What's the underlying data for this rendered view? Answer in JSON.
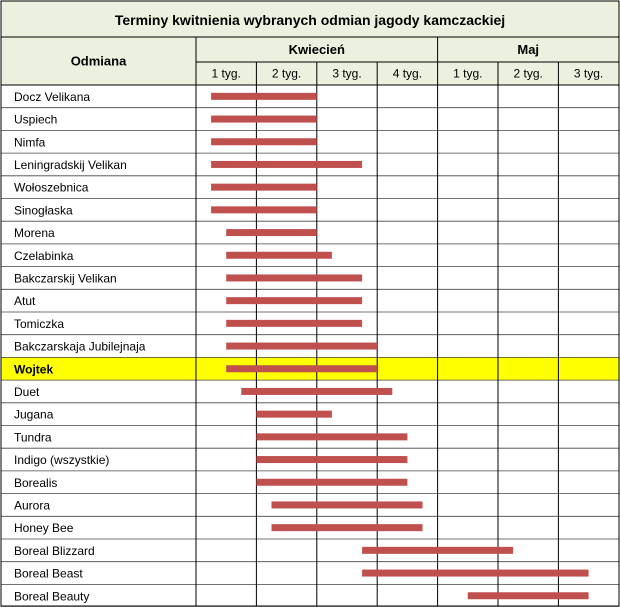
{
  "chart_data": {
    "type": "gantt",
    "title": "Terminy kwitnienia wybranych odmian jagody kamczackiej",
    "row_header": "Odmiana",
    "months": [
      {
        "name": "Kwiecień",
        "weeks": [
          "1 tyg.",
          "2 tyg.",
          "3 tyg.",
          "4 tyg."
        ]
      },
      {
        "name": "Maj",
        "weeks": [
          "1 tyg.",
          "2 tyg.",
          "3 tyg."
        ]
      }
    ],
    "unit": "week index (0 = start of Kwiecień 1 tyg.)",
    "axis_range": [
      0,
      7
    ],
    "bar_color": "#c0504d",
    "highlight_color": "#ffff00",
    "header_color": "#ebf1de",
    "rows": [
      {
        "name": "Docz Velikana",
        "start": 0.25,
        "end": 2.0
      },
      {
        "name": "Uspiech",
        "start": 0.25,
        "end": 2.0
      },
      {
        "name": "Nimfa",
        "start": 0.25,
        "end": 2.0
      },
      {
        "name": "Leningradskij Velikan",
        "start": 0.25,
        "end": 2.75
      },
      {
        "name": "Wołoszebnica",
        "start": 0.25,
        "end": 2.0
      },
      {
        "name": "Sinogłaska",
        "start": 0.25,
        "end": 2.0
      },
      {
        "name": "Morena",
        "start": 0.5,
        "end": 2.0
      },
      {
        "name": "Czelabinka",
        "start": 0.5,
        "end": 2.25
      },
      {
        "name": "Bakczarskij Velikan",
        "start": 0.5,
        "end": 2.75
      },
      {
        "name": "Atut",
        "start": 0.5,
        "end": 2.75
      },
      {
        "name": "Tomiczka",
        "start": 0.5,
        "end": 2.75
      },
      {
        "name": "Bakczarskaja Jubilejnaja",
        "start": 0.5,
        "end": 3.0
      },
      {
        "name": "Wojtek",
        "start": 0.5,
        "end": 3.0,
        "highlight": true
      },
      {
        "name": "Duet",
        "start": 0.75,
        "end": 3.25
      },
      {
        "name": "Jugana",
        "start": 1.0,
        "end": 2.25
      },
      {
        "name": "Tundra",
        "start": 1.0,
        "end": 3.5
      },
      {
        "name": "Indigo (wszystkie)",
        "start": 1.0,
        "end": 3.5
      },
      {
        "name": "Borealis",
        "start": 1.0,
        "end": 3.5
      },
      {
        "name": "Aurora",
        "start": 1.25,
        "end": 3.75
      },
      {
        "name": "Honey Bee",
        "start": 1.25,
        "end": 3.75
      },
      {
        "name": "Boreal Blizzard",
        "start": 2.75,
        "end": 5.25
      },
      {
        "name": "Boreal Beast",
        "start": 2.75,
        "end": 6.5
      },
      {
        "name": "Boreal Beauty",
        "start": 4.5,
        "end": 6.5
      }
    ]
  }
}
